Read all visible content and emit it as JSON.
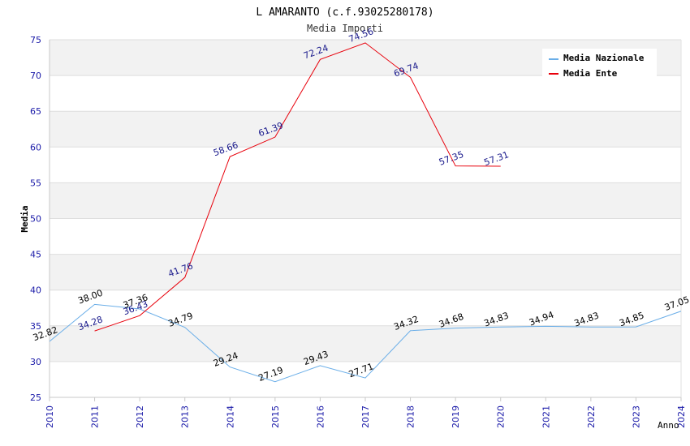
{
  "chart_data": {
    "type": "line",
    "title": "L AMARANTO (c.f.93025280178)",
    "subtitle": "Media Importi",
    "xlabel": "Anno",
    "ylabel": "Media",
    "ylim": [
      25,
      75
    ],
    "yticks": [
      "25",
      "30",
      "35",
      "40",
      "45",
      "50",
      "55",
      "60",
      "65",
      "70",
      "75"
    ],
    "categories": [
      "2010",
      "2011",
      "2012",
      "2013",
      "2014",
      "2015",
      "2016",
      "2017",
      "2018",
      "2019",
      "2020",
      "2021",
      "2022",
      "2023",
      "2024"
    ],
    "legend_position": "top-right",
    "grid": true,
    "series": [
      {
        "name": "Media Nazionale",
        "color": "#6aaee8",
        "label_color": "#000000",
        "values": [
          32.82,
          38.0,
          37.36,
          34.79,
          29.24,
          27.19,
          29.43,
          27.71,
          34.32,
          34.68,
          34.83,
          34.94,
          34.83,
          34.85,
          37.05
        ],
        "labels": [
          "32.82",
          "38.00",
          "37.36",
          "34.79",
          "29.24",
          "27.19",
          "29.43",
          "27.71",
          "34.32",
          "34.68",
          "34.83",
          "34.94",
          "34.83",
          "34.85",
          "37.05"
        ]
      },
      {
        "name": "Media Ente",
        "color": "#e8000b",
        "label_color": "#1a1a8c",
        "values": [
          null,
          34.28,
          36.43,
          41.76,
          58.66,
          61.39,
          72.24,
          74.56,
          69.74,
          57.35,
          57.31,
          null,
          null,
          null,
          null
        ],
        "labels": [
          null,
          "34.28",
          "36.43",
          "41.76",
          "58.66",
          "61.39",
          "72.24",
          "74.56",
          "69.74",
          "57.35",
          "57.31",
          null,
          null,
          null,
          null
        ]
      }
    ]
  }
}
